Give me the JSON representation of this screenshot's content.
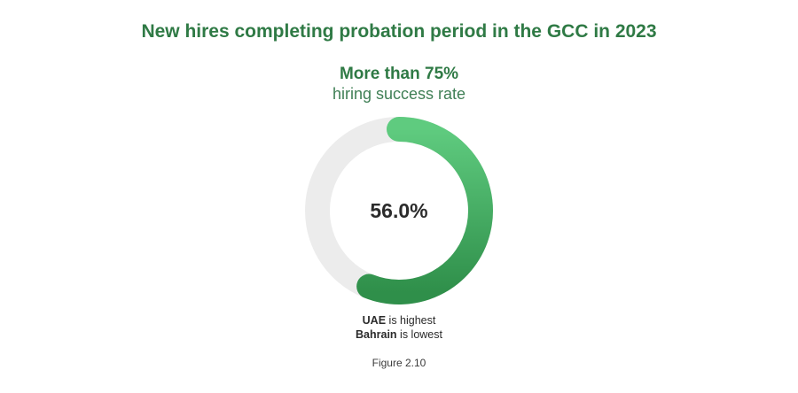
{
  "chart_data": {
    "type": "pie",
    "title": "New hires completing probation period in the GCC in 2023",
    "subtitle": "More than 75%",
    "subtitle_caption": "hiring success rate",
    "value": 56.0,
    "value_label": "56.0%",
    "max": 100,
    "grid": false,
    "colors": {
      "track": "#ececec",
      "fill_start": "#5fcb7f",
      "fill_end": "#2f8f4a"
    }
  },
  "notes": [
    {
      "bold": "UAE",
      "text": " is highest"
    },
    {
      "bold": "Bahrain",
      "text": " is lowest"
    }
  ],
  "figure_label": "Figure 2.10"
}
